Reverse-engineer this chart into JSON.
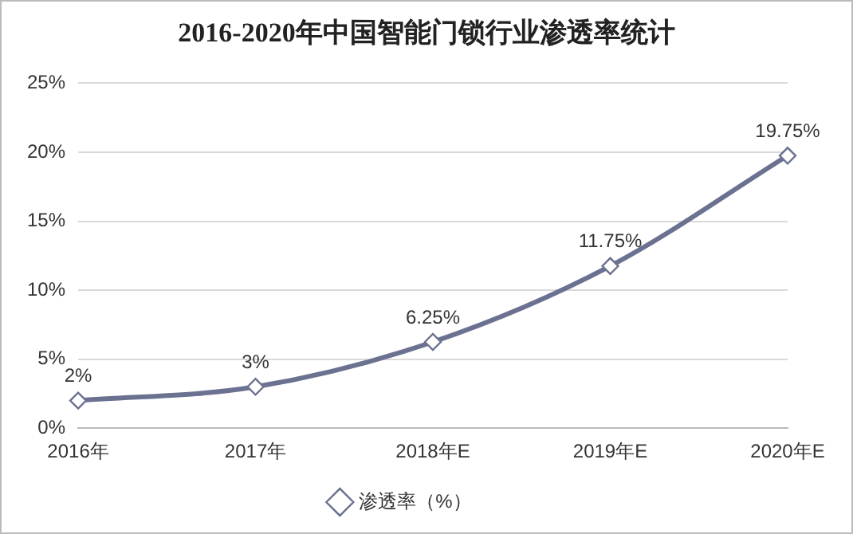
{
  "chart_data": {
    "type": "line",
    "title": "2016-2020年中国智能门锁行业渗透率统计",
    "categories": [
      "2016年",
      "2017年",
      "2018年E",
      "2019年E",
      "2020年E"
    ],
    "series": [
      {
        "name": "渗透率（%）",
        "color": "#6b7190",
        "values": [
          2,
          3,
          6.25,
          11.75,
          19.75
        ],
        "value_labels": [
          "2%",
          "3%",
          "6.25%",
          "11.75%",
          "19.75%"
        ]
      }
    ],
    "ylim": [
      0,
      25
    ],
    "yticks": [
      {
        "value": 0,
        "label": "0%"
      },
      {
        "value": 5,
        "label": "5%"
      },
      {
        "value": 10,
        "label": "10%"
      },
      {
        "value": 15,
        "label": "15%"
      },
      {
        "value": 20,
        "label": "20%"
      },
      {
        "value": 25,
        "label": "25%"
      }
    ],
    "grid": "y",
    "legend": "bottom",
    "marker": "diamond",
    "line_style": "solid"
  }
}
